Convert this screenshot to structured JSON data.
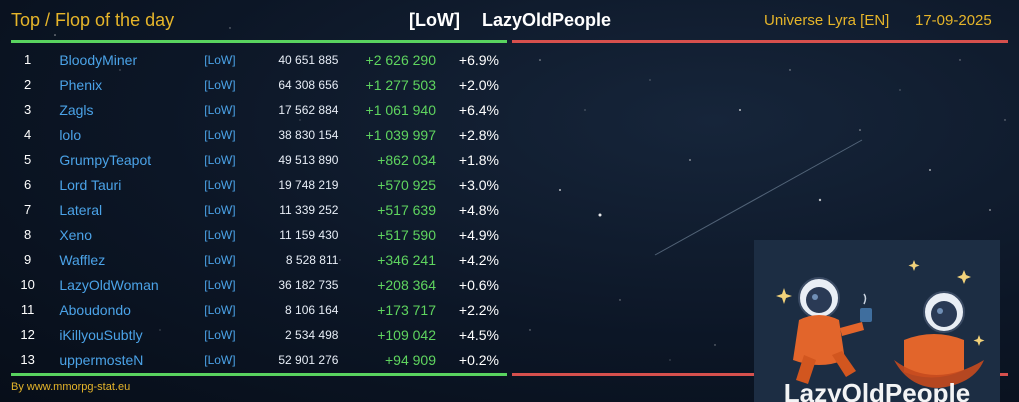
{
  "header": {
    "title": "Top / Flop of the day",
    "alliance_tag": "[LoW]",
    "alliance_name": "LazyOldPeople",
    "universe": "Universe Lyra [EN]",
    "date": "17-09-2025"
  },
  "colors": {
    "accent": "#e6b52a",
    "top_line": "#59d35f",
    "flop_line": "#d6504d",
    "player": "#4ba3e8",
    "gain": "#5fd55f"
  },
  "columns": [
    "rank",
    "player",
    "alliance",
    "points",
    "gain",
    "percent"
  ],
  "rows": [
    {
      "rank": "1",
      "name": "BloodyMiner",
      "tag": "[LoW]",
      "points": "40 651 885",
      "gain": "+2 626 290",
      "pct": "+6.9%"
    },
    {
      "rank": "2",
      "name": "Phenix",
      "tag": "[LoW]",
      "points": "64 308 656",
      "gain": "+1 277 503",
      "pct": "+2.0%"
    },
    {
      "rank": "3",
      "name": "Zagls",
      "tag": "[LoW]",
      "points": "17 562 884",
      "gain": "+1 061 940",
      "pct": "+6.4%"
    },
    {
      "rank": "4",
      "name": "lolo",
      "tag": "[LoW]",
      "points": "38 830 154",
      "gain": "+1 039 997",
      "pct": "+2.8%"
    },
    {
      "rank": "5",
      "name": "GrumpyTeapot",
      "tag": "[LoW]",
      "points": "49 513 890",
      "gain": "+862 034",
      "pct": "+1.8%"
    },
    {
      "rank": "6",
      "name": "Lord Tauri",
      "tag": "[LoW]",
      "points": "19 748 219",
      "gain": "+570 925",
      "pct": "+3.0%"
    },
    {
      "rank": "7",
      "name": "Lateral",
      "tag": "[LoW]",
      "points": "11 339 252",
      "gain": "+517 639",
      "pct": "+4.8%"
    },
    {
      "rank": "8",
      "name": "Xeno",
      "tag": "[LoW]",
      "points": "11 159 430",
      "gain": "+517 590",
      "pct": "+4.9%"
    },
    {
      "rank": "9",
      "name": "Wafflez",
      "tag": "[LoW]",
      "points": "8 528 811",
      "gain": "+346 241",
      "pct": "+4.2%"
    },
    {
      "rank": "10",
      "name": "LazyOldWoman",
      "tag": "[LoW]",
      "points": "36 182 735",
      "gain": "+208 364",
      "pct": "+0.6%"
    },
    {
      "rank": "11",
      "name": "Aboudondo",
      "tag": "[LoW]",
      "points": "8 106 164",
      "gain": "+173 717",
      "pct": "+2.2%"
    },
    {
      "rank": "12",
      "name": "iKillyouSubtly",
      "tag": "[LoW]",
      "points": "2 534 498",
      "gain": "+109 042",
      "pct": "+4.5%"
    },
    {
      "rank": "13",
      "name": "uppermosteN",
      "tag": "[LoW]",
      "points": "52 901 276",
      "gain": "+94 909",
      "pct": "+0.2%"
    }
  ],
  "footer": "By www.mmorpg-stat.eu",
  "logo": {
    "icon": "astronauts-logo-icon",
    "text": "LazyOldPeople"
  }
}
